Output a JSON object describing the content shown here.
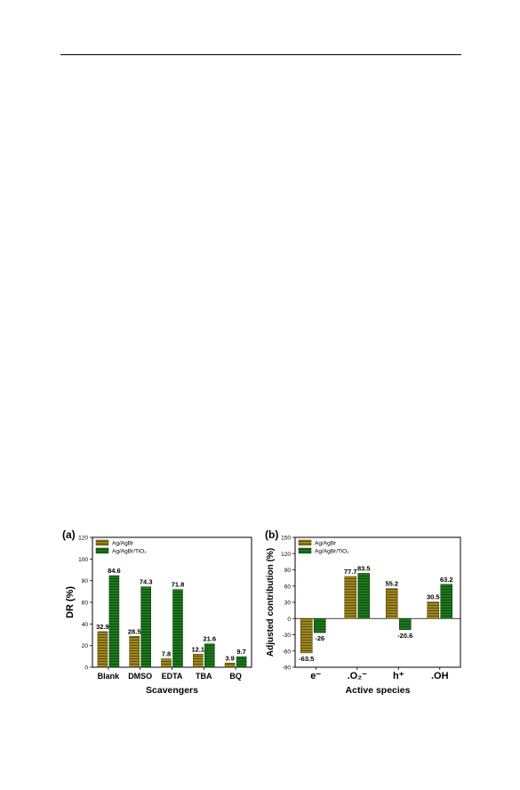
{
  "colors": {
    "agagbr_fill": "#a08a22",
    "agagbr_stripe": "#5a4a08",
    "agagbr_tio2_fill": "#1f7a1f",
    "agagbr_tio2_stripe": "#0c4a0c"
  },
  "chart_data": [
    {
      "type": "bar",
      "panel_label": "(a)",
      "xlabel": "Scavengers",
      "ylabel": "DR  (%)",
      "categories": [
        "Blank",
        "DMSO",
        "EDTA",
        "TBA",
        "BQ"
      ],
      "ylim": [
        0,
        120
      ],
      "yticks": [
        0,
        20,
        40,
        60,
        80,
        100,
        120
      ],
      "legend_position": "top-left",
      "grid": false,
      "series": [
        {
          "name": "Ag/AgBr",
          "values": [
            32.9,
            28.5,
            7.8,
            12.1,
            3.9
          ],
          "labels": [
            "32.9",
            "28.5",
            "7.8",
            "12.1",
            "3.9"
          ]
        },
        {
          "name": "Ag/AgBr/TiO₂",
          "values": [
            84.6,
            74.3,
            71.8,
            21.6,
            9.7
          ],
          "labels": [
            "84.6",
            "74.3",
            "71.8",
            "21.6",
            "9.7"
          ]
        }
      ]
    },
    {
      "type": "bar",
      "panel_label": "(b)",
      "xlabel": "Active species",
      "ylabel": "Adjusted contribution  (%)",
      "categories": [
        "e⁻",
        ".O₂⁻",
        "h⁺",
        ".OH"
      ],
      "ylim": [
        -90,
        150
      ],
      "yticks": [
        -90,
        -60,
        -30,
        0,
        30,
        60,
        90,
        120,
        150
      ],
      "legend_position": "top-left",
      "grid": false,
      "series": [
        {
          "name": "Ag/AgBr",
          "values": [
            -63.5,
            77.7,
            55.2,
            30.5
          ],
          "labels": [
            "-63.5",
            "77.7",
            "55.2",
            "30.5"
          ]
        },
        {
          "name": "Ag/AgBr/TiO₂",
          "values": [
            -26,
            83.5,
            -20.6,
            63.2
          ],
          "labels": [
            "-26",
            "83.5",
            "-20.6",
            "63.2"
          ]
        }
      ]
    }
  ]
}
